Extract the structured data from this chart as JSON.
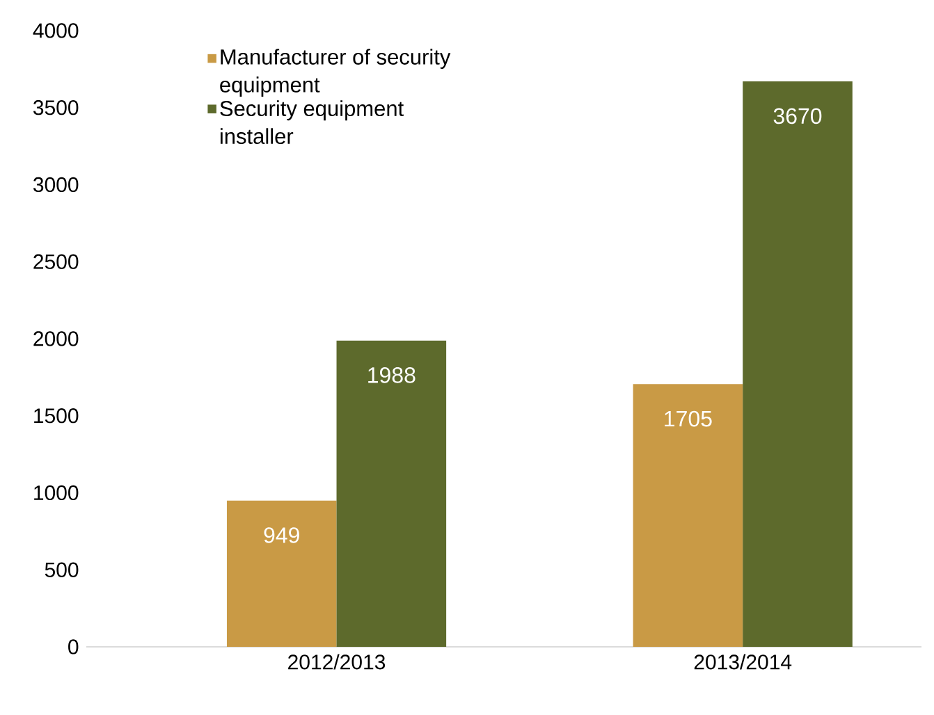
{
  "chart_data": {
    "type": "bar",
    "categories": [
      "2012/2013",
      "2013/2014"
    ],
    "series": [
      {
        "name": "Manufacturer of security equipment",
        "color": "#c99a45",
        "values": [
          949,
          1705
        ]
      },
      {
        "name": "Security equipment installer",
        "color": "#5d6a2c",
        "values": [
          1988,
          3670
        ]
      }
    ],
    "data_labels": true,
    "ylim": [
      0,
      4000
    ],
    "yticks": [
      0,
      500,
      1000,
      1500,
      2000,
      2500,
      3000,
      3500,
      4000
    ],
    "grid": false,
    "legend": "top left"
  }
}
